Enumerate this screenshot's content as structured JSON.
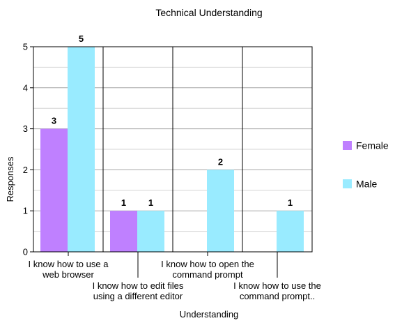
{
  "chart_data": {
    "type": "bar",
    "title": "Technical Understanding",
    "xlabel": "Understanding",
    "ylabel": "Responses",
    "ylim": [
      0,
      5
    ],
    "categories": [
      [
        "I know how to use a",
        "web browser"
      ],
      [
        "I know how to edit files",
        "using a different editor"
      ],
      [
        "I know how to open the",
        "command prompt"
      ],
      [
        "I know how to use the",
        "command prompt.."
      ]
    ],
    "series": [
      {
        "name": "Female",
        "color": "#bf80ff",
        "values": [
          3,
          1,
          0,
          0
        ]
      },
      {
        "name": "Male",
        "color": "#99ebff",
        "values": [
          5,
          1,
          2,
          1
        ]
      }
    ],
    "yticks": [
      "0",
      "1",
      "2",
      "3",
      "4",
      "5"
    ],
    "grid": true,
    "legend": "right"
  }
}
